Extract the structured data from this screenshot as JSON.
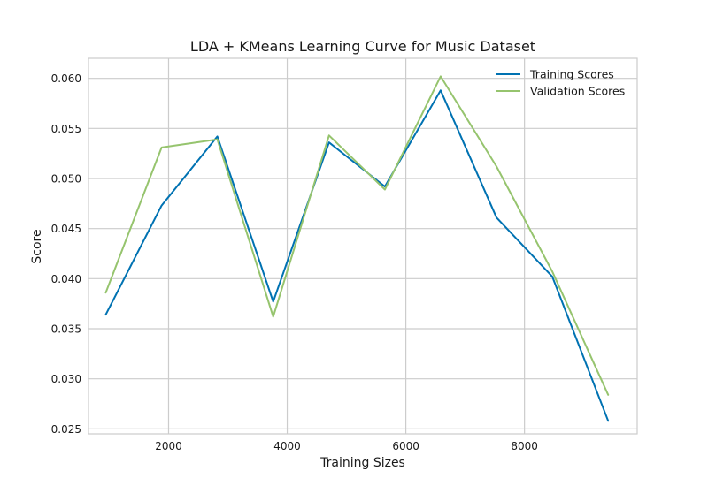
{
  "chart_data": {
    "type": "line",
    "title": "LDA + KMeans Learning Curve for Music Dataset",
    "xlabel": "Training Sizes",
    "ylabel": "Score",
    "xlim": [
      650,
      9900
    ],
    "ylim": [
      0.0245,
      0.062
    ],
    "xticks": [
      2000,
      4000,
      6000,
      8000
    ],
    "xtick_labels": [
      "2000",
      "4000",
      "6000",
      "8000"
    ],
    "yticks": [
      0.025,
      0.03,
      0.035,
      0.04,
      0.045,
      0.05,
      0.055,
      0.06
    ],
    "ytick_labels": [
      "0.025",
      "0.030",
      "0.035",
      "0.040",
      "0.045",
      "0.050",
      "0.055",
      "0.060"
    ],
    "grid": true,
    "legend_position": "top-right",
    "x": [
      941,
      1882,
      2823,
      3764,
      4705,
      5646,
      6587,
      7528,
      8469,
      9410
    ],
    "series": [
      {
        "name": "Training Scores",
        "color": "#0072b2",
        "values": [
          0.0364,
          0.0473,
          0.0542,
          0.0377,
          0.0536,
          0.0492,
          0.0588,
          0.0461,
          0.0402,
          0.0258
        ]
      },
      {
        "name": "Validation Scores",
        "color": "#96c46e",
        "values": [
          0.0386,
          0.0531,
          0.0539,
          0.0362,
          0.0543,
          0.0489,
          0.0602,
          0.0512,
          0.0407,
          0.0284
        ]
      }
    ]
  }
}
